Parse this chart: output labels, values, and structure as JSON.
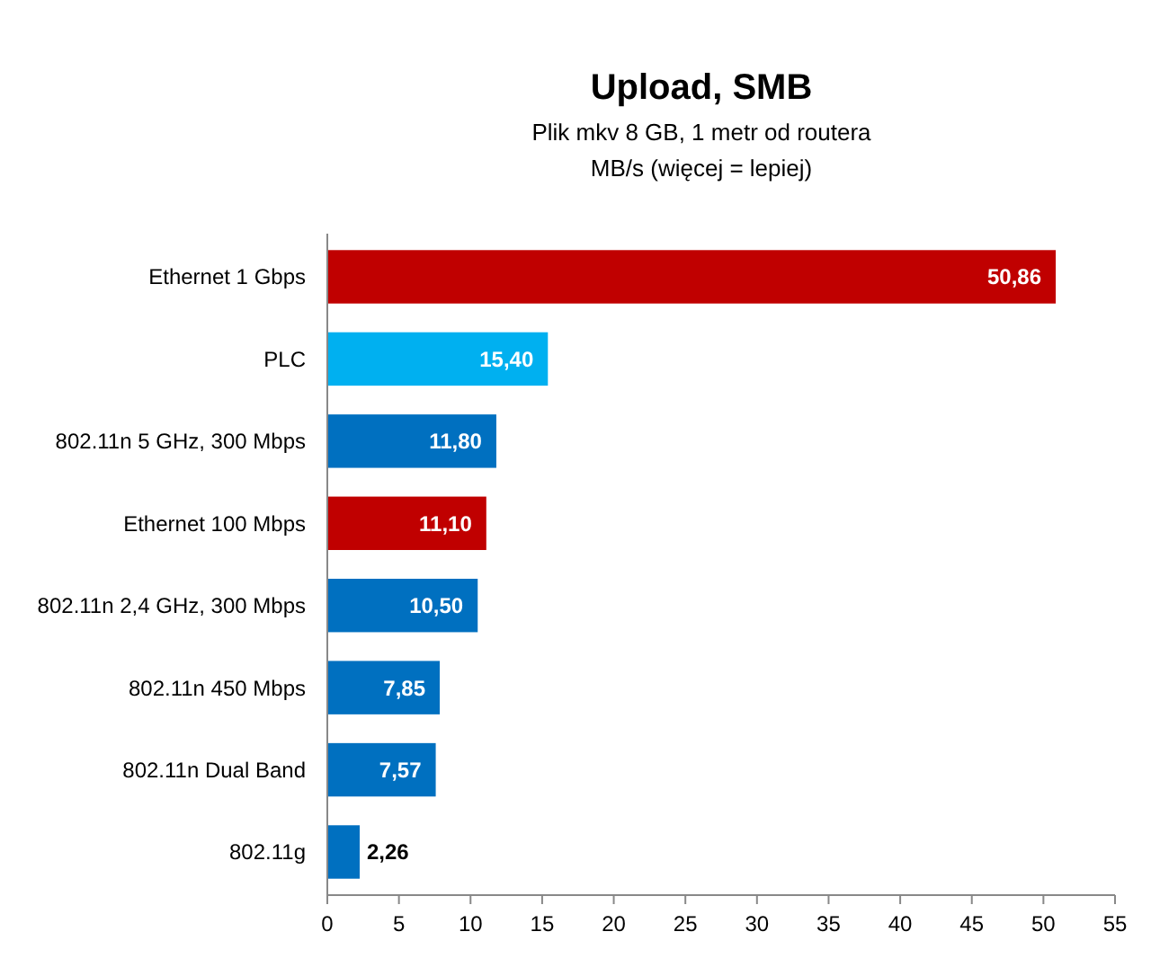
{
  "chart_data": {
    "type": "bar",
    "orientation": "horizontal",
    "title": "Upload, SMB",
    "subtitle": "Plik mkv 8 GB, 1 metr od routera\nMB/s (więcej = lepiej)",
    "categories": [
      "Ethernet 1 Gbps",
      "PLC",
      "802.11n 5 GHz, 300 Mbps",
      "Ethernet 100 Mbps",
      "802.11n 2,4 GHz, 300 Mbps",
      "802.11n 450 Mbps",
      "802.11n Dual Band",
      "802.11g"
    ],
    "values": [
      50.86,
      15.4,
      11.8,
      11.1,
      10.5,
      7.85,
      7.57,
      2.26
    ],
    "colors": [
      "#c00000",
      "#00b0f0",
      "#0070c0",
      "#c00000",
      "#0070c0",
      "#0070c0",
      "#0070c0",
      "#0070c0"
    ],
    "value_labels": [
      "50,86",
      "15,40",
      "11,80",
      "11,10",
      "10,50",
      "7,85",
      "7,57",
      "2,26"
    ],
    "xlim": [
      0,
      55
    ],
    "xticks": [
      0,
      5,
      10,
      15,
      20,
      25,
      30,
      35,
      40,
      45,
      50,
      55
    ],
    "grid": false
  }
}
